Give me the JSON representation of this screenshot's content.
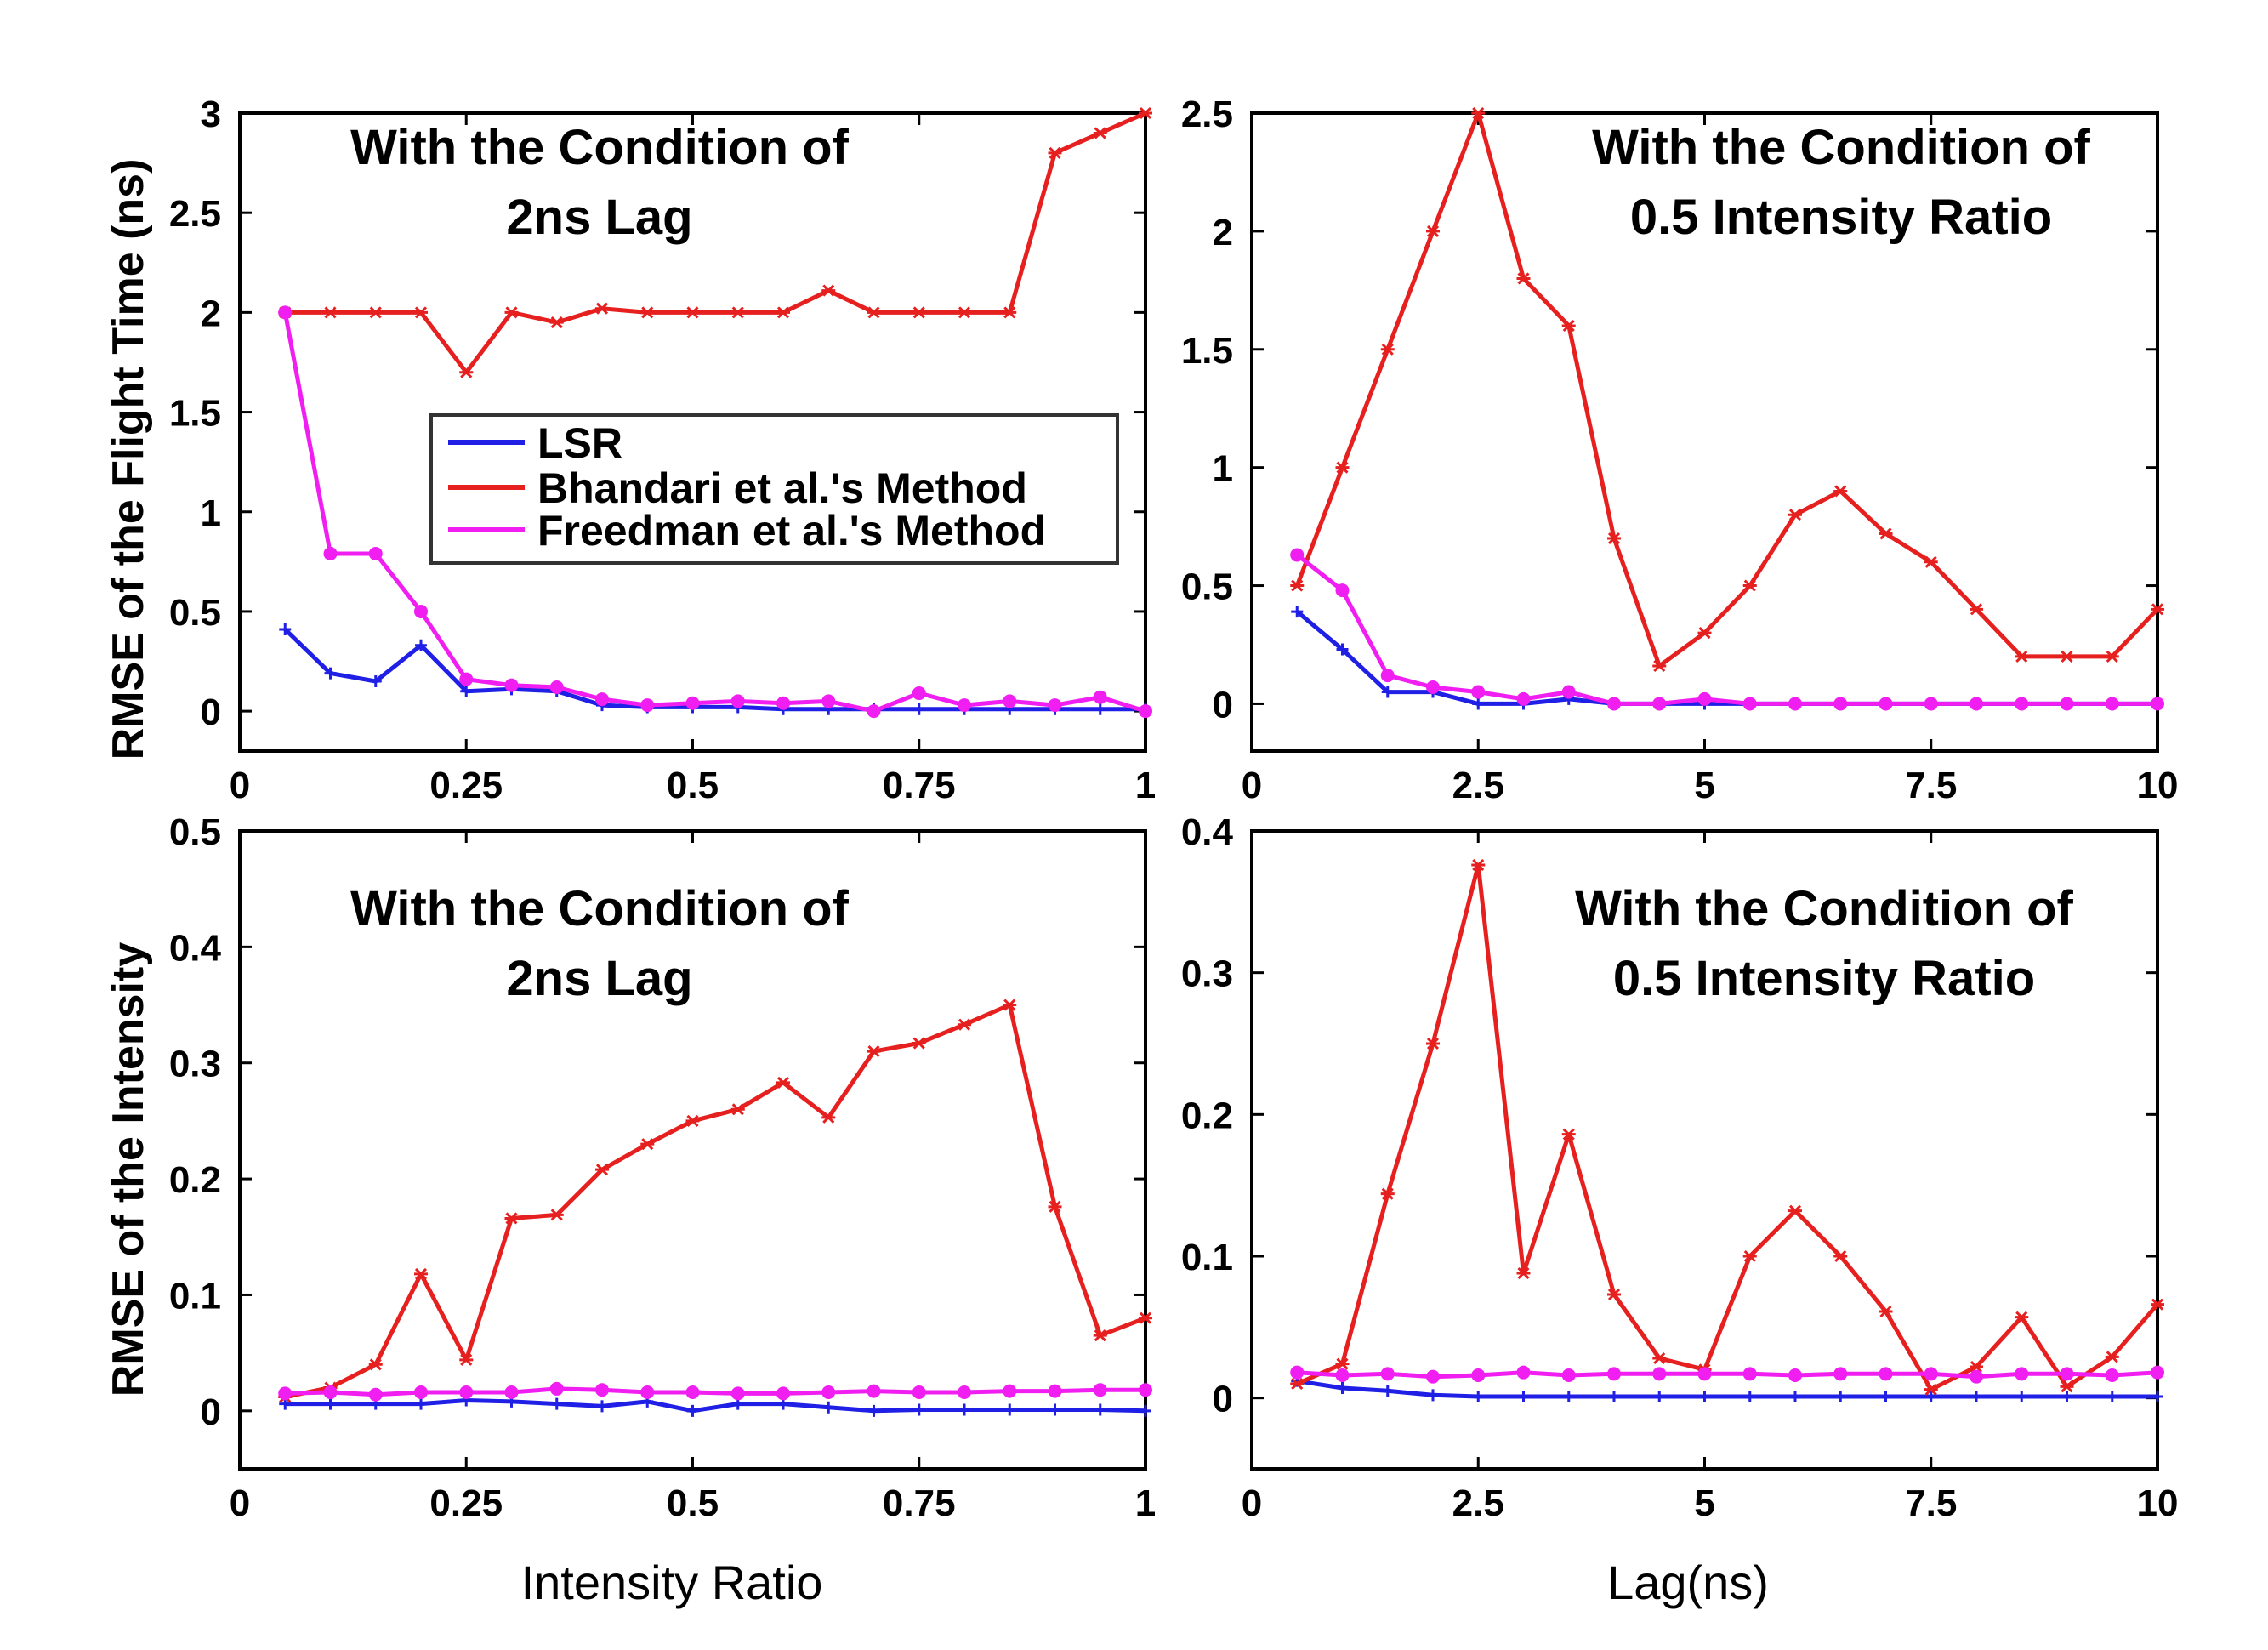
{
  "figure": {
    "xlabel_left": "Intensity Ratio",
    "xlabel_right": "Lag(ns)",
    "ylabel_top": "RMSE of the Flight Time (ns)",
    "ylabel_bottom": "RMSE of the Intensity"
  },
  "legend": {
    "entries": [
      "LSR",
      "Bhandari et al.'s Method",
      "Freedman et al.'s Method"
    ],
    "colors": [
      "#1f1fe6",
      "#e61f1f",
      "#f01ef0"
    ]
  },
  "chart_data": [
    {
      "type": "line",
      "annotation": [
        "With the Condition of",
        "2ns Lag"
      ],
      "xlim": [
        0,
        1
      ],
      "ylim": [
        -0.2,
        3
      ],
      "xticks": [
        0,
        0.25,
        0.5,
        0.75,
        1
      ],
      "xtick_labels": [
        "0",
        "0.25",
        "0.5",
        "0.75",
        "1"
      ],
      "yticks": [
        0,
        0.5,
        1,
        1.5,
        2,
        2.5,
        3
      ],
      "ytick_labels": [
        "0",
        "0.5",
        "1",
        "1.5",
        "2",
        "2.5",
        "3"
      ],
      "x": [
        0.05,
        0.1,
        0.15,
        0.2,
        0.25,
        0.3,
        0.35,
        0.4,
        0.45,
        0.5,
        0.55,
        0.6,
        0.65,
        0.7,
        0.75,
        0.8,
        0.85,
        0.9,
        0.95,
        1.0
      ],
      "series": [
        {
          "name": "LSR",
          "color": "#1f1fe6",
          "marker": "plus",
          "values": [
            0.41,
            0.19,
            0.15,
            0.33,
            0.1,
            0.11,
            0.1,
            0.03,
            0.02,
            0.02,
            0.02,
            0.01,
            0.01,
            0.01,
            0.01,
            0.01,
            0.01,
            0.01,
            0.01,
            0.01
          ]
        },
        {
          "name": "Bhandari et al.'s Method",
          "color": "#e61f1f",
          "marker": "star",
          "values": [
            2.0,
            2.0,
            2.0,
            2.0,
            1.7,
            2.0,
            1.95,
            2.02,
            2.0,
            2.0,
            2.0,
            2.0,
            2.11,
            2.0,
            2.0,
            2.0,
            2.0,
            2.8,
            2.9,
            3.0
          ]
        },
        {
          "name": "Freedman et al.'s Method",
          "color": "#f01ef0",
          "marker": "dot",
          "values": [
            2.0,
            0.79,
            0.79,
            0.5,
            0.16,
            0.13,
            0.12,
            0.06,
            0.03,
            0.04,
            0.05,
            0.04,
            0.05,
            0.0,
            0.09,
            0.03,
            0.05,
            0.03,
            0.07,
            0.0
          ]
        }
      ]
    },
    {
      "type": "line",
      "annotation": [
        "With the Condition of",
        "0.5 Intensity Ratio"
      ],
      "xlim": [
        0,
        10
      ],
      "ylim": [
        -0.2,
        2.5
      ],
      "xticks": [
        0,
        2.5,
        5,
        7.5,
        10
      ],
      "xtick_labels": [
        "0",
        "2.5",
        "5",
        "7.5",
        "10"
      ],
      "yticks": [
        0,
        0.5,
        1,
        1.5,
        2,
        2.5
      ],
      "ytick_labels": [
        "0",
        "0.5",
        "1",
        "1.5",
        "2",
        "2.5"
      ],
      "x": [
        0.5,
        1,
        1.5,
        2,
        2.5,
        3,
        3.5,
        4,
        4.5,
        5,
        5.5,
        6,
        6.5,
        7,
        7.5,
        8,
        8.5,
        9,
        9.5,
        10
      ],
      "series": [
        {
          "name": "LSR",
          "color": "#1f1fe6",
          "marker": "plus",
          "values": [
            0.39,
            0.23,
            0.05,
            0.05,
            0.0,
            0.0,
            0.02,
            0.0,
            0.0,
            0.0,
            0.0,
            0.0,
            0.0,
            0.0,
            0.0,
            0.0,
            0.0,
            0.0,
            0.0,
            0.0
          ]
        },
        {
          "name": "Bhandari et al.'s Method",
          "color": "#e61f1f",
          "marker": "star",
          "values": [
            0.5,
            1.0,
            1.5,
            2.0,
            2.5,
            1.8,
            1.6,
            0.7,
            0.16,
            0.3,
            0.5,
            0.8,
            0.9,
            0.72,
            0.6,
            0.4,
            0.2,
            0.2,
            0.2,
            0.4
          ]
        },
        {
          "name": "Freedman et al.'s Method",
          "color": "#f01ef0",
          "marker": "dot",
          "values": [
            0.63,
            0.48,
            0.12,
            0.07,
            0.05,
            0.02,
            0.05,
            0.0,
            0.0,
            0.02,
            0.0,
            0.0,
            0.0,
            0.0,
            0.0,
            0.0,
            0.0,
            0.0,
            0.0,
            0.0
          ]
        }
      ]
    },
    {
      "type": "line",
      "annotation": [
        "With the Condition of",
        "2ns Lag"
      ],
      "xlim": [
        0,
        1
      ],
      "ylim": [
        -0.05,
        0.5
      ],
      "xticks": [
        0,
        0.25,
        0.5,
        0.75,
        1
      ],
      "xtick_labels": [
        "0",
        "0.25",
        "0.5",
        "0.75",
        "1"
      ],
      "yticks": [
        0,
        0.1,
        0.2,
        0.3,
        0.4,
        0.5
      ],
      "ytick_labels": [
        "0",
        "0.1",
        "0.2",
        "0.3",
        "0.4",
        "0.5"
      ],
      "x": [
        0.05,
        0.1,
        0.15,
        0.2,
        0.25,
        0.3,
        0.35,
        0.4,
        0.45,
        0.5,
        0.55,
        0.6,
        0.65,
        0.7,
        0.75,
        0.8,
        0.85,
        0.9,
        0.95,
        1.0
      ],
      "series": [
        {
          "name": "LSR",
          "color": "#1f1fe6",
          "marker": "plus",
          "values": [
            0.006,
            0.006,
            0.006,
            0.006,
            0.009,
            0.008,
            0.006,
            0.004,
            0.008,
            0.0,
            0.006,
            0.006,
            0.003,
            0.0,
            0.001,
            0.001,
            0.001,
            0.001,
            0.001,
            0.0
          ]
        },
        {
          "name": "Bhandari et al.'s Method",
          "color": "#e61f1f",
          "marker": "star",
          "values": [
            0.012,
            0.02,
            0.04,
            0.118,
            0.044,
            0.166,
            0.169,
            0.208,
            0.23,
            0.25,
            0.26,
            0.283,
            0.253,
            0.31,
            0.317,
            0.333,
            0.35,
            0.176,
            0.065,
            0.08
          ]
        },
        {
          "name": "Freedman et al.'s Method",
          "color": "#f01ef0",
          "marker": "dot",
          "values": [
            0.015,
            0.016,
            0.014,
            0.016,
            0.016,
            0.016,
            0.019,
            0.018,
            0.016,
            0.016,
            0.015,
            0.015,
            0.016,
            0.017,
            0.016,
            0.016,
            0.017,
            0.017,
            0.018,
            0.018
          ]
        }
      ]
    },
    {
      "type": "line",
      "annotation": [
        "With the Condition of",
        "0.5 Intensity Ratio"
      ],
      "xlim": [
        0,
        10
      ],
      "ylim": [
        -0.05,
        0.4
      ],
      "xticks": [
        0,
        2.5,
        5,
        7.5,
        10
      ],
      "xtick_labels": [
        "0",
        "2.5",
        "5",
        "7.5",
        "10"
      ],
      "yticks": [
        0,
        0.1,
        0.2,
        0.3,
        0.4
      ],
      "ytick_labels": [
        "0",
        "0.1",
        "0.2",
        "0.3",
        "0.4"
      ],
      "x": [
        0.5,
        1,
        1.5,
        2,
        2.5,
        3,
        3.5,
        4,
        4.5,
        5,
        5.5,
        6,
        6.5,
        7,
        7.5,
        8,
        8.5,
        9,
        9.5,
        10
      ],
      "series": [
        {
          "name": "LSR",
          "color": "#1f1fe6",
          "marker": "plus",
          "values": [
            0.012,
            0.007,
            0.005,
            0.002,
            0.001,
            0.001,
            0.001,
            0.001,
            0.001,
            0.001,
            0.001,
            0.001,
            0.001,
            0.001,
            0.001,
            0.001,
            0.001,
            0.001,
            0.001,
            0.001
          ]
        },
        {
          "name": "Bhandari et al.'s Method",
          "color": "#e61f1f",
          "marker": "star",
          "values": [
            0.01,
            0.024,
            0.144,
            0.25,
            0.376,
            0.088,
            0.186,
            0.073,
            0.028,
            0.02,
            0.1,
            0.132,
            0.1,
            0.061,
            0.006,
            0.022,
            0.057,
            0.008,
            0.029,
            0.066
          ]
        },
        {
          "name": "Freedman et al.'s Method",
          "color": "#f01ef0",
          "marker": "dot",
          "values": [
            0.018,
            0.016,
            0.017,
            0.015,
            0.016,
            0.018,
            0.016,
            0.017,
            0.017,
            0.017,
            0.017,
            0.016,
            0.017,
            0.017,
            0.017,
            0.015,
            0.017,
            0.017,
            0.016,
            0.018
          ]
        }
      ]
    }
  ]
}
